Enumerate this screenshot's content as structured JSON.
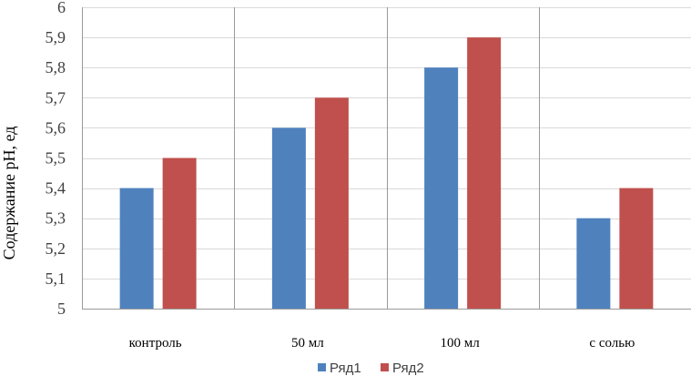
{
  "chart_data": {
    "type": "bar",
    "categories": [
      "контроль",
      "50 мл",
      "100 мл",
      "с солью"
    ],
    "series": [
      {
        "name": "Ряд1",
        "color": "#4f81bd",
        "values": [
          5.4,
          5.6,
          5.8,
          5.3
        ]
      },
      {
        "name": "Ряд2",
        "color": "#c0504d",
        "values": [
          5.5,
          5.7,
          5.9,
          5.4
        ]
      }
    ],
    "ylabel": "Содержание рН, ед",
    "ylim": [
      5,
      6
    ],
    "yticks": [
      5,
      5.1,
      5.2,
      5.3,
      5.4,
      5.5,
      5.6,
      5.7,
      5.8,
      5.9,
      6
    ],
    "ytick_labels": [
      "5",
      "5,1",
      "5,2",
      "5,3",
      "5,4",
      "5,5",
      "5,6",
      "5,7",
      "5,8",
      "5,9",
      "6"
    ],
    "grid": "horizontal",
    "legend": "bottom"
  }
}
